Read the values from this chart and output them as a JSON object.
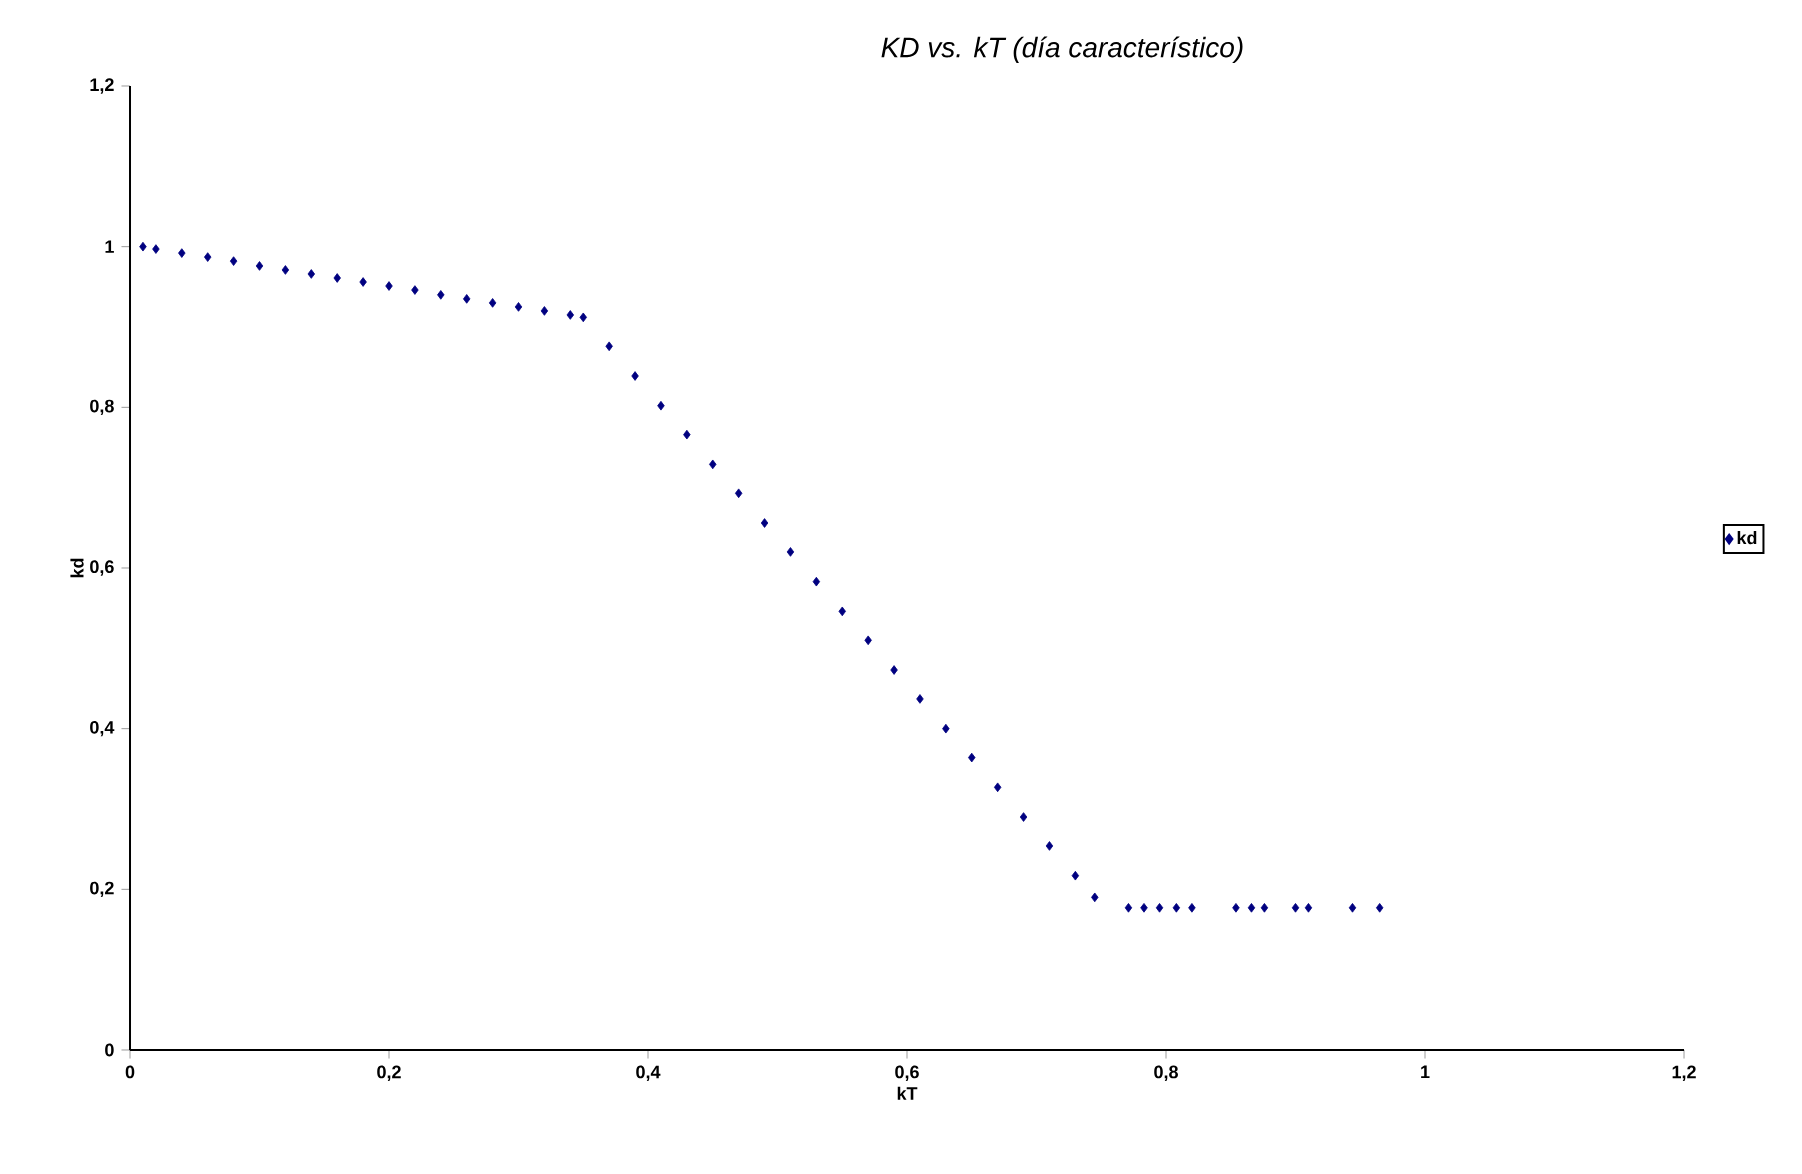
{
  "chart_data": {
    "type": "scatter",
    "title": "KD vs. kT (día característico)",
    "xlabel": "kT",
    "ylabel": "kd",
    "xlim": [
      0,
      1.2
    ],
    "ylim": [
      0,
      1.2
    ],
    "xticks": [
      0,
      {
        "value": 0.2,
        "label": "0,2"
      },
      {
        "value": 0.4,
        "label": "0,4"
      },
      {
        "value": 0.6,
        "label": "0,6"
      },
      {
        "value": 0.8,
        "label": "0,8"
      },
      1,
      {
        "value": 1.2,
        "label": "1,2"
      }
    ],
    "yticks": [
      0,
      {
        "value": 0.2,
        "label": "0,2"
      },
      {
        "value": 0.4,
        "label": "0,4"
      },
      {
        "value": 0.6,
        "label": "0,6"
      },
      {
        "value": 0.8,
        "label": "0,8"
      },
      1,
      {
        "value": 1.2,
        "label": "1,2"
      }
    ],
    "grid": false,
    "legend": "right",
    "marker": "diamond",
    "series": [
      {
        "name": "kd",
        "color": "#000080",
        "x": [
          0.01,
          0.02,
          0.04,
          0.06,
          0.08,
          0.1,
          0.12,
          0.14,
          0.16,
          0.18,
          0.2,
          0.22,
          0.24,
          0.26,
          0.28,
          0.3,
          0.32,
          0.34,
          0.35,
          0.37,
          0.39,
          0.41,
          0.43,
          0.45,
          0.47,
          0.49,
          0.51,
          0.53,
          0.55,
          0.57,
          0.59,
          0.61,
          0.63,
          0.65,
          0.67,
          0.69,
          0.71,
          0.73,
          0.745,
          0.771,
          0.783,
          0.795,
          0.808,
          0.82,
          0.854,
          0.866,
          0.876,
          0.9,
          0.91,
          0.944,
          0.965
        ],
        "values": [
          1.0,
          0.997,
          0.992,
          0.987,
          0.982,
          0.976,
          0.971,
          0.966,
          0.961,
          0.956,
          0.951,
          0.946,
          0.94,
          0.935,
          0.93,
          0.925,
          0.92,
          0.915,
          0.912,
          0.876,
          0.839,
          0.802,
          0.766,
          0.729,
          0.693,
          0.656,
          0.62,
          0.583,
          0.546,
          0.51,
          0.473,
          0.437,
          0.4,
          0.364,
          0.327,
          0.29,
          0.254,
          0.217,
          0.19,
          0.177,
          0.177,
          0.177,
          0.177,
          0.177,
          0.177,
          0.177,
          0.177,
          0.177,
          0.177,
          0.177,
          0.177
        ]
      }
    ]
  }
}
